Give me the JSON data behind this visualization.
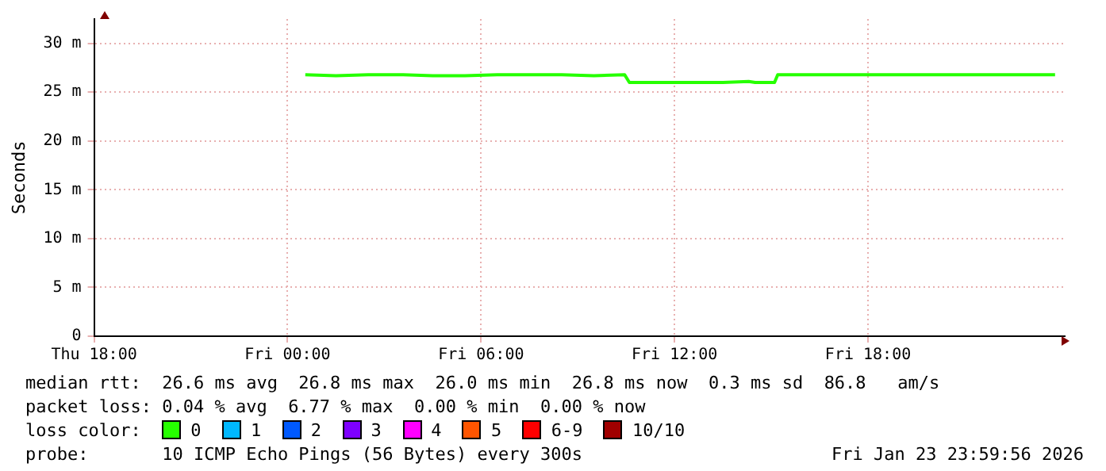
{
  "chart_data": {
    "type": "line",
    "ylabel": "Seconds",
    "legend_title": "loss color:",
    "legend": "bottom",
    "grid": true,
    "marker": "none",
    "line_style": "solid",
    "xlim": [
      "2026-01-22T18:00",
      "2026-01-24T00:06"
    ],
    "ylim": [
      0,
      32.5
    ],
    "xticks": [
      {
        "value": "2026-01-22T18:00",
        "label": "Thu 18:00"
      },
      {
        "value": "2026-01-23T00:00",
        "label": "Fri 00:00"
      },
      {
        "value": "2026-01-23T06:00",
        "label": "Fri 06:00"
      },
      {
        "value": "2026-01-23T12:00",
        "label": "Fri 12:00"
      },
      {
        "value": "2026-01-23T18:00",
        "label": "Fri 18:00"
      }
    ],
    "yticks": [
      0,
      {
        "value": 5,
        "label": "5 m"
      },
      {
        "value": 10,
        "label": "10 m"
      },
      {
        "value": 15,
        "label": "15 m"
      },
      {
        "value": 20,
        "label": "20 m"
      },
      {
        "value": 25,
        "label": "25 m"
      },
      {
        "value": 30,
        "label": "30 m"
      }
    ],
    "x": [
      "2026-01-23T00:33",
      "2026-01-23T01:30",
      "2026-01-23T02:30",
      "2026-01-23T03:30",
      "2026-01-23T04:30",
      "2026-01-23T05:30",
      "2026-01-23T06:30",
      "2026-01-23T07:30",
      "2026-01-23T08:30",
      "2026-01-23T09:30",
      "2026-01-23T10:27",
      "2026-01-23T10:36",
      "2026-01-23T11:30",
      "2026-01-23T12:30",
      "2026-01-23T13:30",
      "2026-01-23T14:18",
      "2026-01-23T14:30",
      "2026-01-23T15:06",
      "2026-01-23T15:12",
      "2026-01-23T16:00",
      "2026-01-23T17:00",
      "2026-01-23T18:00",
      "2026-01-23T19:00",
      "2026-01-23T20:00",
      "2026-01-23T21:00",
      "2026-01-23T22:00",
      "2026-01-23T23:00",
      "2026-01-23T23:48"
    ],
    "series": [
      {
        "name": "0",
        "color": "#26ff00",
        "values": [
          26.8,
          26.7,
          26.8,
          26.8,
          26.7,
          26.7,
          26.8,
          26.8,
          26.8,
          26.7,
          26.8,
          26.0,
          26.0,
          26.0,
          26.0,
          26.1,
          26.0,
          26.0,
          26.8,
          26.8,
          26.8,
          26.8,
          26.8,
          26.8,
          26.8,
          26.8,
          26.8,
          26.8
        ]
      },
      {
        "name": "1",
        "color": "#00b8ff",
        "values": [
          null,
          null,
          null,
          null,
          null,
          null,
          null,
          null,
          null,
          null,
          null,
          null,
          null,
          null,
          null,
          null,
          null,
          null,
          null,
          null,
          null,
          null,
          null,
          null,
          null,
          null,
          null,
          null
        ]
      },
      {
        "name": "2",
        "color": "#0059ff",
        "values": [
          null,
          null,
          null,
          null,
          null,
          null,
          null,
          null,
          null,
          null,
          null,
          null,
          null,
          null,
          null,
          null,
          null,
          null,
          null,
          null,
          null,
          null,
          null,
          null,
          null,
          null,
          null,
          null
        ]
      },
      {
        "name": "3",
        "color": "#7e00ff",
        "values": [
          null,
          null,
          null,
          null,
          null,
          null,
          null,
          null,
          null,
          null,
          null,
          null,
          null,
          null,
          null,
          null,
          null,
          null,
          null,
          null,
          null,
          null,
          null,
          null,
          null,
          null,
          null,
          null
        ]
      },
      {
        "name": "4",
        "color": "#ff00ff",
        "values": [
          null,
          null,
          null,
          null,
          null,
          null,
          null,
          null,
          null,
          null,
          null,
          null,
          null,
          null,
          null,
          null,
          null,
          null,
          null,
          null,
          null,
          null,
          null,
          null,
          null,
          null,
          null,
          null
        ]
      },
      {
        "name": "5",
        "color": "#ff5500",
        "values": [
          null,
          null,
          null,
          null,
          null,
          null,
          null,
          null,
          null,
          null,
          null,
          null,
          null,
          null,
          null,
          null,
          null,
          null,
          null,
          null,
          null,
          null,
          null,
          null,
          null,
          null,
          null,
          null
        ]
      },
      {
        "name": "6-9",
        "color": "#ff0000",
        "values": [
          null,
          null,
          null,
          null,
          null,
          null,
          null,
          null,
          null,
          null,
          null,
          null,
          null,
          null,
          null,
          null,
          null,
          null,
          null,
          null,
          null,
          null,
          null,
          null,
          null,
          null,
          null,
          null
        ]
      },
      {
        "name": "10/10",
        "color": "#a10000",
        "values": [
          null,
          null,
          null,
          null,
          null,
          null,
          null,
          null,
          null,
          null,
          null,
          null,
          null,
          null,
          null,
          null,
          null,
          null,
          null,
          null,
          null,
          null,
          null,
          null,
          null,
          null,
          null,
          null
        ]
      }
    ],
    "annotations": [
      "median rtt:  26.6 ms avg  26.8 ms max  26.0 ms min  26.8 ms now  0.3 ms sd  86.8   am/s",
      "packet loss: 0.04 % avg  6.77 % max  0.00 % min  0.00 % now",
      "probe:       10 ICMP Echo Pings (56 Bytes) every 300s",
      "Fri Jan 23 23:59:56 2026"
    ]
  }
}
